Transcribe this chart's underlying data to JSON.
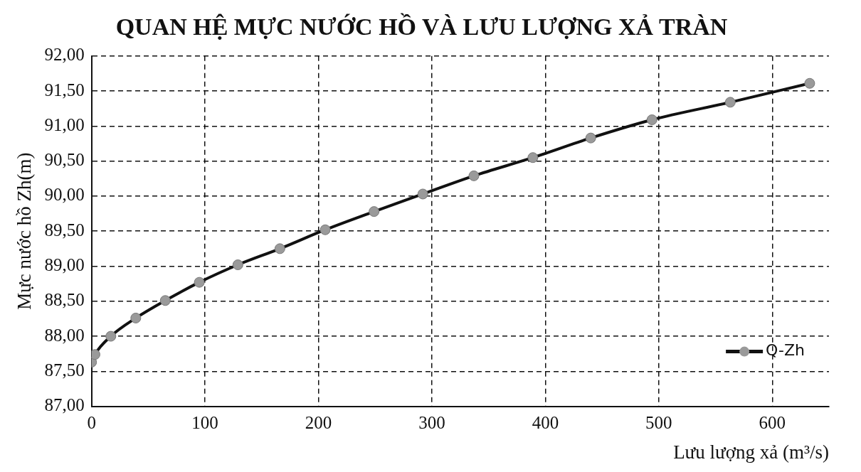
{
  "chart_data": {
    "type": "line",
    "title": "QUAN HỆ MỰC NƯỚC HỒ VÀ LƯU LƯỢNG XẢ TRÀN",
    "xlabel": "Lưu lượng xả (m³/s)",
    "ylabel": "Mực nước hồ Zh(m)",
    "x": [
      0,
      3,
      17,
      39,
      65,
      95,
      129,
      166,
      206,
      249,
      292,
      337,
      389,
      440,
      494,
      563,
      633
    ],
    "series": [
      {
        "name": "Q-Zh",
        "color": "#111111",
        "values": [
          87.63,
          87.74,
          88.0,
          88.26,
          88.51,
          88.77,
          89.02,
          89.25,
          89.52,
          89.78,
          90.03,
          90.29,
          90.55,
          90.83,
          91.09,
          91.34,
          91.61
        ]
      }
    ],
    "xlim": [
      0,
      650
    ],
    "xticks": [
      0,
      100,
      200,
      300,
      400,
      500,
      600
    ],
    "ylim": [
      87,
      92
    ],
    "yticks": [
      {
        "value": 87,
        "label": "87,00"
      },
      {
        "value": 87.5,
        "label": "87,50"
      },
      {
        "value": 88,
        "label": "88,00"
      },
      {
        "value": 88.5,
        "label": "88,50"
      },
      {
        "value": 89,
        "label": "89,00"
      },
      {
        "value": 89.5,
        "label": "89,50"
      },
      {
        "value": 90,
        "label": "90,00"
      },
      {
        "value": 90.5,
        "label": "90,50"
      },
      {
        "value": 91,
        "label": "91,00"
      },
      {
        "value": 91.5,
        "label": "91,50"
      },
      {
        "value": 92,
        "label": "92,00"
      }
    ],
    "grid": true,
    "legend": "bottom right",
    "marker": "circle",
    "line_style": "solid"
  }
}
